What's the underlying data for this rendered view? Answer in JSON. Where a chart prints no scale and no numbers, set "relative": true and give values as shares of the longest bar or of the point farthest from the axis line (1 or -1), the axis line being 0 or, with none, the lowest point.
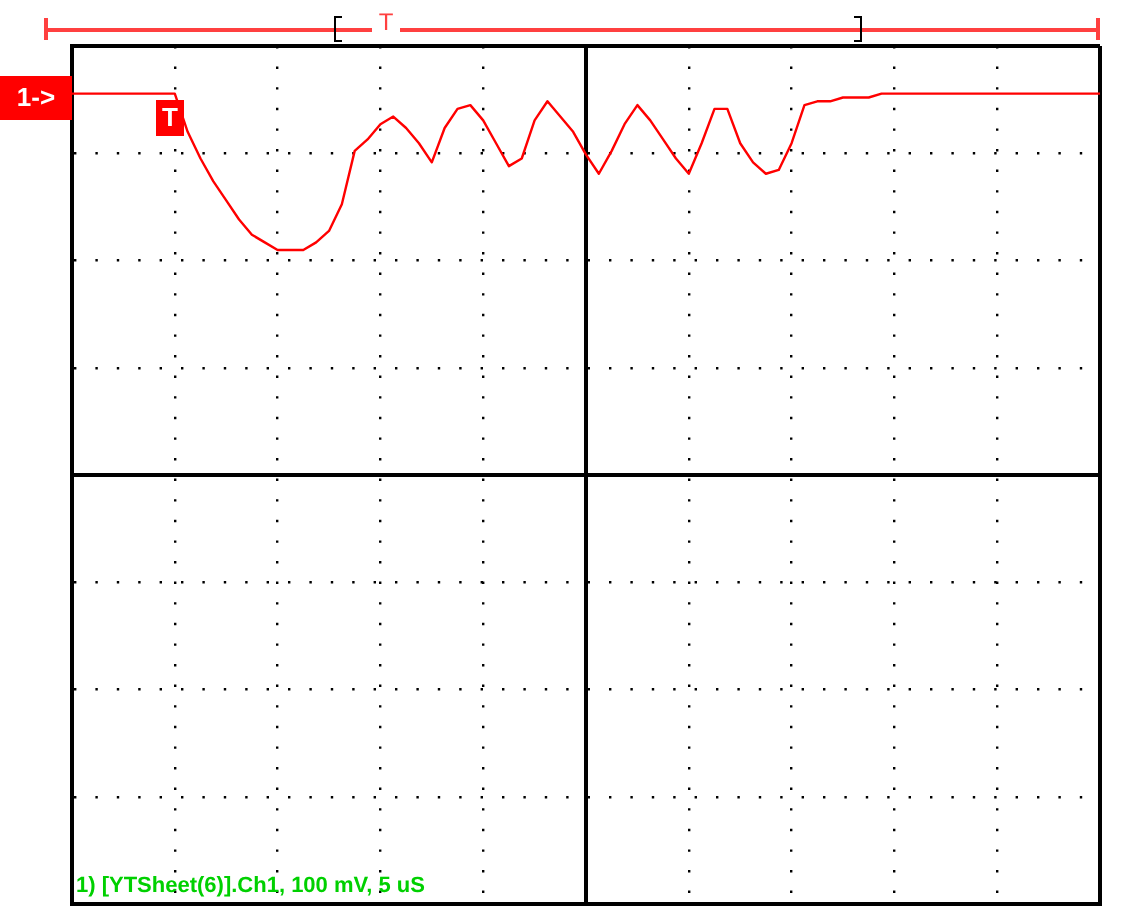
{
  "chart_data": {
    "type": "line",
    "relative": true,
    "grid": true,
    "legend": false,
    "marker": "none",
    "line_style": "solid",
    "categories": [
      null,
      null,
      null,
      null,
      null,
      null,
      null,
      null,
      null,
      null,
      null,
      null,
      null,
      null,
      null,
      null,
      null,
      null,
      null,
      null,
      null,
      null,
      null,
      null,
      null,
      null,
      null,
      null,
      null,
      null,
      null,
      null,
      null,
      null,
      null,
      null,
      null,
      null,
      null,
      null,
      null,
      null,
      null,
      null,
      null,
      null,
      null,
      null,
      null,
      null,
      null,
      null,
      null,
      null,
      null,
      null,
      null,
      null,
      null,
      null,
      null,
      null,
      null,
      null,
      null,
      null,
      null,
      null,
      null,
      null,
      null,
      null,
      null,
      null,
      null,
      null,
      null,
      null,
      null,
      null,
      null
    ],
    "series": [
      {
        "color": "#ff0000",
        "values": [
          1,
          1,
          1,
          1,
          1,
          1,
          1,
          1,
          1,
          0.9,
          0.83,
          0.77,
          0.72,
          0.67,
          0.63,
          0.61,
          0.59,
          0.59,
          0.59,
          0.61,
          0.64,
          0.71,
          0.85,
          0.88,
          0.92,
          0.94,
          0.91,
          0.87,
          0.82,
          0.91,
          0.96,
          0.97,
          0.93,
          0.87,
          0.81,
          0.83,
          0.93,
          0.98,
          0.94,
          0.9,
          0.84,
          0.79,
          0.85,
          0.92,
          0.97,
          0.93,
          0.88,
          0.83,
          0.79,
          0.87,
          0.96,
          0.96,
          0.87,
          0.82,
          0.79,
          0.8,
          0.87,
          0.97,
          0.98,
          0.98,
          0.99,
          0.99,
          0.99,
          1,
          1,
          1,
          1,
          1,
          1,
          1,
          1,
          1,
          1,
          1,
          1,
          1,
          1,
          1,
          1,
          1,
          1
        ]
      }
    ],
    "annotations": [
      "1) [YTSheet(6)].Ch1, 100 mV, 5 uS",
      "1->",
      "T"
    ]
  }
}
